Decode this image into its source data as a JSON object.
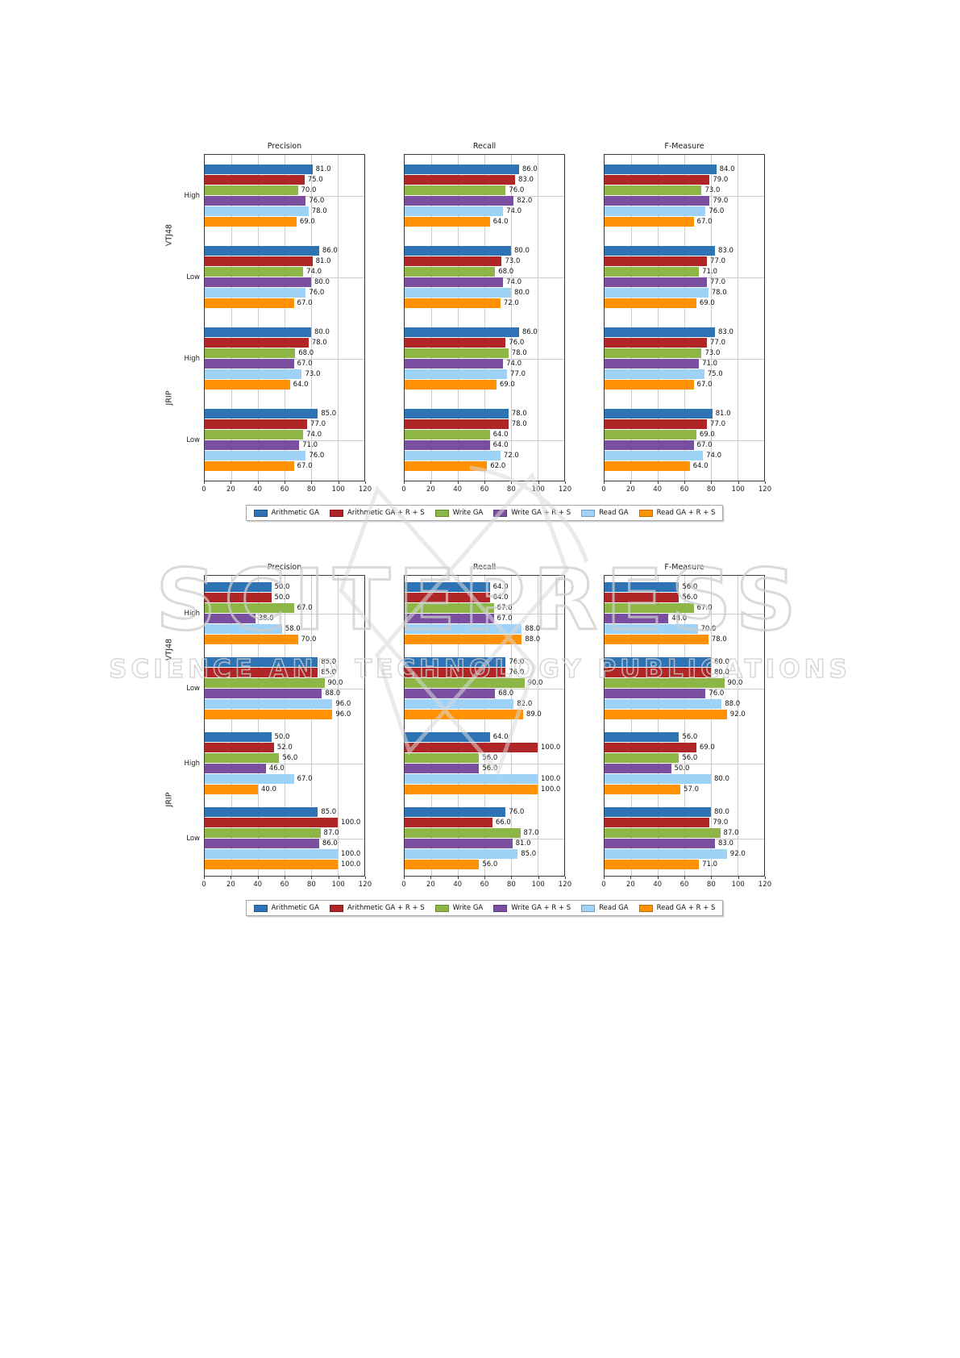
{
  "watermark": {
    "title": "SCITEPRESS",
    "subtitle": "SCIENCE AND TECHNOLOGY PUBLICATIONS"
  },
  "legend": [
    "Arithmetic GA",
    "Arithmetic GA + R + S",
    "Write GA",
    "Write GA + R + S",
    "Read GA",
    "Read GA + R + S"
  ],
  "series_colors": [
    "#2e74b5",
    "#b02626",
    "#8db646",
    "#7a4fa0",
    "#9ed3f7",
    "#ff9102"
  ],
  "chart_data": [
    {
      "type": "bar",
      "orientation": "horizontal",
      "series": [
        "Arithmetic GA",
        "Arithmetic GA + R + S",
        "Write GA",
        "Write GA + R + S",
        "Read GA",
        "Read GA + R + S"
      ],
      "xlim": [
        0,
        120
      ],
      "xticks": [
        0,
        20,
        40,
        60,
        80,
        100,
        120
      ],
      "grid": true,
      "legend_position": "bottom-center",
      "subplots": [
        {
          "title": "Precision",
          "groups": [
            {
              "classifier": "VTJ48",
              "level": "High",
              "values": [
                81,
                75,
                70,
                76,
                78,
                69
              ]
            },
            {
              "classifier": "VTJ48",
              "level": "Low",
              "values": [
                86,
                81,
                74,
                80,
                76,
                67
              ]
            },
            {
              "classifier": "JRIP",
              "level": "High",
              "values": [
                80,
                78,
                68,
                67,
                73,
                64
              ]
            },
            {
              "classifier": "JRIP",
              "level": "Low",
              "values": [
                85,
                77,
                74,
                71,
                76,
                67
              ]
            }
          ]
        },
        {
          "title": "Recall",
          "groups": [
            {
              "classifier": "VTJ48",
              "level": "High",
              "values": [
                86,
                83,
                76,
                82,
                74,
                64
              ]
            },
            {
              "classifier": "VTJ48",
              "level": "Low",
              "values": [
                80,
                73,
                68,
                74,
                80,
                72
              ]
            },
            {
              "classifier": "JRIP",
              "level": "High",
              "values": [
                86,
                76,
                78,
                74,
                77,
                69
              ]
            },
            {
              "classifier": "JRIP",
              "level": "Low",
              "values": [
                78,
                78,
                64,
                64,
                72,
                62
              ]
            }
          ]
        },
        {
          "title": "F-Measure",
          "groups": [
            {
              "classifier": "VTJ48",
              "level": "High",
              "values": [
                84,
                79,
                73,
                79,
                76,
                67
              ]
            },
            {
              "classifier": "VTJ48",
              "level": "Low",
              "values": [
                83,
                77,
                71,
                77,
                78,
                69
              ]
            },
            {
              "classifier": "JRIP",
              "level": "High",
              "values": [
                83,
                77,
                73,
                71,
                75,
                67
              ]
            },
            {
              "classifier": "JRIP",
              "level": "Low",
              "values": [
                81,
                77,
                69,
                67,
                74,
                64
              ]
            }
          ]
        }
      ]
    },
    {
      "type": "bar",
      "orientation": "horizontal",
      "series": [
        "Arithmetic GA",
        "Arithmetic GA + R + S",
        "Write GA",
        "Write GA + R + S",
        "Read GA",
        "Read GA + R + S"
      ],
      "xlim": [
        0,
        120
      ],
      "xticks": [
        0,
        20,
        40,
        60,
        80,
        100,
        120
      ],
      "grid": true,
      "legend_position": "bottom-center",
      "subplots": [
        {
          "title": "Precision",
          "groups": [
            {
              "classifier": "VTJ48",
              "level": "High",
              "values": [
                50,
                50,
                67,
                38,
                58,
                70
              ]
            },
            {
              "classifier": "VTJ48",
              "level": "Low",
              "values": [
                85,
                85,
                90,
                88,
                96,
                96
              ]
            },
            {
              "classifier": "JRIP",
              "level": "High",
              "values": [
                50,
                52,
                56,
                46,
                67,
                40
              ]
            },
            {
              "classifier": "JRIP",
              "level": "Low",
              "values": [
                85,
                100,
                87,
                86,
                100,
                100
              ]
            }
          ]
        },
        {
          "title": "Recall",
          "groups": [
            {
              "classifier": "VTJ48",
              "level": "High",
              "values": [
                64,
                64,
                67,
                67,
                88,
                88
              ]
            },
            {
              "classifier": "VTJ48",
              "level": "Low",
              "values": [
                76,
                76,
                90,
                68,
                82,
                89
              ]
            },
            {
              "classifier": "JRIP",
              "level": "High",
              "values": [
                64,
                100,
                56,
                56,
                100,
                100
              ]
            },
            {
              "classifier": "JRIP",
              "level": "Low",
              "values": [
                76,
                66,
                87,
                81,
                85,
                56
              ]
            }
          ]
        },
        {
          "title": "F-Measure",
          "groups": [
            {
              "classifier": "VTJ48",
              "level": "High",
              "values": [
                56,
                56,
                67,
                48,
                70,
                78
              ]
            },
            {
              "classifier": "VTJ48",
              "level": "Low",
              "values": [
                80,
                80,
                90,
                76,
                88,
                92
              ]
            },
            {
              "classifier": "JRIP",
              "level": "High",
              "values": [
                56,
                69,
                56,
                50,
                80,
                57
              ]
            },
            {
              "classifier": "JRIP",
              "level": "Low",
              "values": [
                80,
                79,
                87,
                83,
                92,
                71
              ]
            }
          ]
        }
      ]
    }
  ]
}
